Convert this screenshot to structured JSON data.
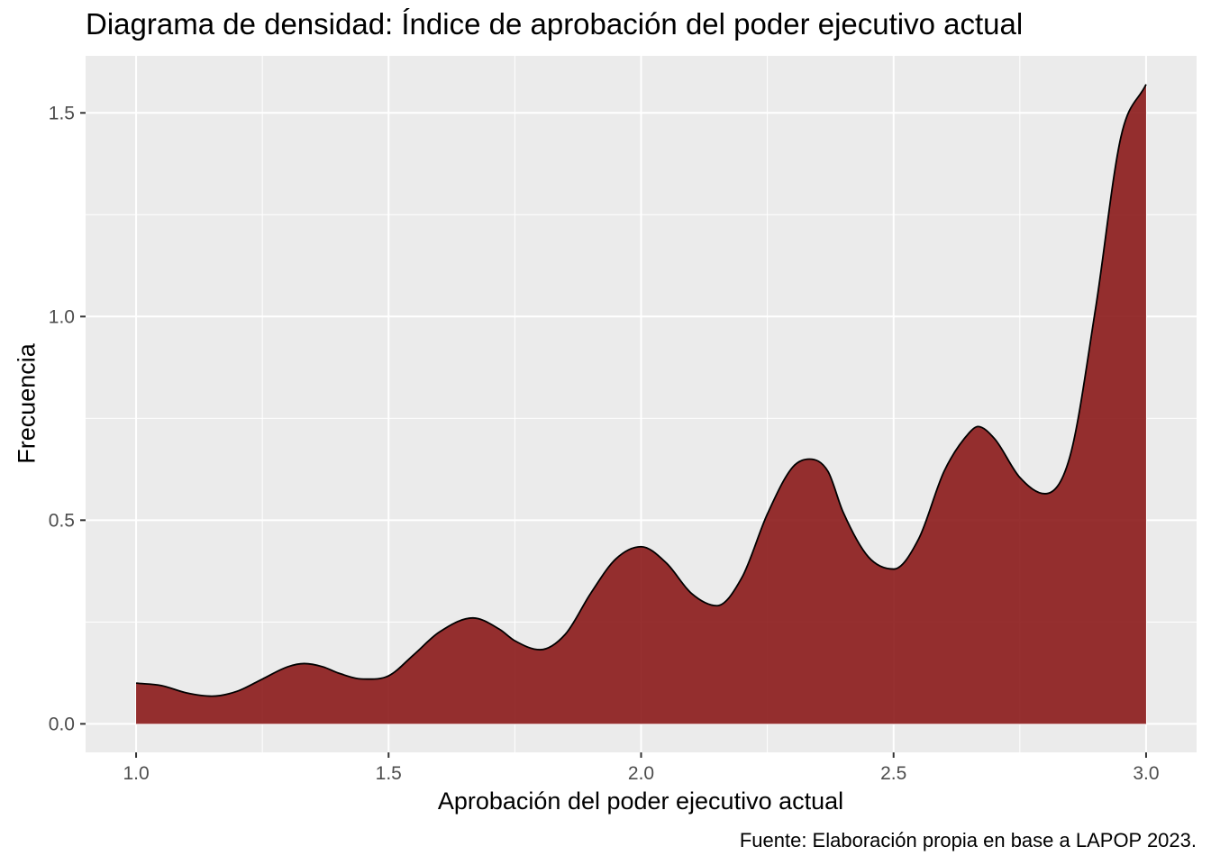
{
  "chart_data": {
    "type": "area",
    "title": "Diagrama de densidad: Índice de aprobación del poder ejecutivo actual",
    "xlabel": "Aprobación del poder ejecutivo actual",
    "ylabel": "Frecuencia",
    "caption": "Fuente:  Elaboración propia en base a LAPOP 2023.",
    "xlim": [
      0.9,
      3.1
    ],
    "ylim": [
      -0.07,
      1.64
    ],
    "x_ticks": [
      1.0,
      1.5,
      2.0,
      2.5,
      3.0
    ],
    "x_tick_labels": [
      "1.0",
      "1.5",
      "2.0",
      "2.5",
      "3.0"
    ],
    "y_ticks": [
      0.0,
      0.5,
      1.0,
      1.5
    ],
    "y_tick_labels": [
      "0.0",
      "0.5",
      "1.0",
      "1.5"
    ],
    "grid": true,
    "fill_color": "#8b1a1a",
    "outline_color": "#000000",
    "panel_color": "#ebebeb",
    "series": [
      {
        "x": [
          1.0,
          1.05,
          1.1,
          1.15,
          1.2,
          1.25,
          1.3,
          1.333,
          1.37,
          1.4,
          1.45,
          1.5,
          1.55,
          1.6,
          1.667,
          1.72,
          1.75,
          1.8,
          1.85,
          1.9,
          1.95,
          2.0,
          2.05,
          2.1,
          2.15,
          2.2,
          2.25,
          2.3,
          2.333,
          2.37,
          2.4,
          2.45,
          2.5,
          2.55,
          2.6,
          2.65,
          2.667,
          2.7,
          2.75,
          2.8,
          2.85,
          2.9,
          2.95,
          3.0
        ],
        "y": [
          0.1,
          0.094,
          0.076,
          0.068,
          0.08,
          0.11,
          0.14,
          0.148,
          0.14,
          0.125,
          0.11,
          0.118,
          0.17,
          0.225,
          0.26,
          0.232,
          0.204,
          0.182,
          0.22,
          0.32,
          0.405,
          0.435,
          0.395,
          0.32,
          0.29,
          0.36,
          0.515,
          0.63,
          0.65,
          0.62,
          0.52,
          0.41,
          0.38,
          0.455,
          0.62,
          0.715,
          0.73,
          0.7,
          0.605,
          0.565,
          0.66,
          1.02,
          1.44,
          1.57
        ]
      }
    ]
  }
}
